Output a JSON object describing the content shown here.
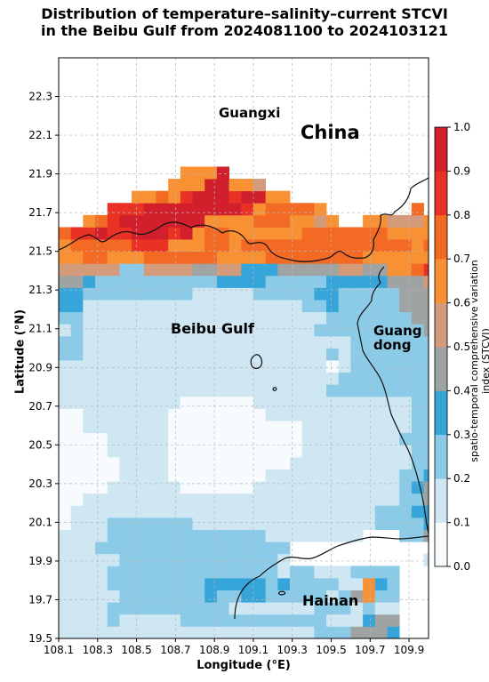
{
  "title_line1": "Distribution of temperature–salinity–current STCVI",
  "title_line2": "in the Beibu Gulf from 2024081100 to 2024103121",
  "xlabel": "Longitude (°E)",
  "ylabel": "Latitude (°N)",
  "colorbar_label": "spatio-temporal comprehensive variation index (STCVI)",
  "places": {
    "guangxi": "Guangxi",
    "china": "China",
    "beibu_gulf": "Beibu Gulf",
    "guangdong_1": "Guang",
    "guangdong_2": "dong",
    "hainan": "Hainan"
  },
  "chart_data": {
    "type": "heatmap",
    "xlim": [
      108.1,
      110.0
    ],
    "ylim": [
      19.5,
      22.5
    ],
    "xticks": [
      "108.1",
      "108.3",
      "108.5",
      "108.7",
      "108.9",
      "109.1",
      "109.3",
      "109.5",
      "109.7",
      "109.9"
    ],
    "yticks": [
      "19.5",
      "19.7",
      "19.9",
      "20.1",
      "20.3",
      "20.5",
      "20.7",
      "20.9",
      "21.1",
      "21.3",
      "21.5",
      "21.7",
      "21.9",
      "22.1",
      "22.3"
    ],
    "grid": true,
    "colorbar": {
      "range": [
        0.0,
        1.0
      ],
      "ticks": [
        "0.0",
        "0.1",
        "0.2",
        "0.3",
        "0.4",
        "0.5",
        "0.6",
        "0.7",
        "0.8",
        "0.9",
        "1.0"
      ],
      "colors": [
        "#f7fbfd",
        "#cfe7f2",
        "#8ccbe8",
        "#36a5d9",
        "#9fa3a3",
        "#d39b79",
        "#f89034",
        "#f26a24",
        "#ea3125",
        "#d11f2b"
      ]
    },
    "cell_size_deg": 0.0625,
    "grid_origin": [
      108.1,
      19.5
    ],
    "rows_bottom_to_top": [
      "1111111111111111111112224443........",
      "1111211111222222222222111344........",
      "1111222222222211111112221211........",
      "1111122222223223322222124622........",
      "1111222222223333323222211632........",
      "1111222222222222221221112222........",
      "1111122222222222221...........11.1..",
      "1112222222222222222............2234.",
      "1111222222222222211111111...22444532",
      "0111222222211111111111111122223344.2",
      "011111111111111111111111112223342262",
      "0011111111111111111111111111224436621",
      "00001111110000001111111111112344443",
      "0000011110000000011111111111223344",
      "000001111000000000011111111112224",
      "000011111000000000001111111112224",
      "000011111000000000001111111122244",
      "001111111000000000001111111112234",
      "0011111110000000011111111111122344",
      "1111111111000000111111111111122224",
      "1111111111111111111111222222222234",
      "1111111111111111111111122222222234",
      "1111111111111111111111012222222344",
      "2211111111111111111111212222222224",
      "2211111111111111111111112222222444",
      "1211111111111111111112222222224444",
      "2211111111111111111111222222244444",
      "331111111111111111112232222244445.",
      "33222222222111112222233222224444.",
      "44322222222223333222223333344454",
      "5555522555544553334444455446678",
      "6677666777777666677777777666666685",
      "6777778886667767777777777777767766",
      "788988999896776666667777777666655",
      "..678999999966667776656..6655566",
      "....888999999998677776.......7",
      "......6676899989966...",
      ".........66699665",
      "..........6669"
    ]
  }
}
